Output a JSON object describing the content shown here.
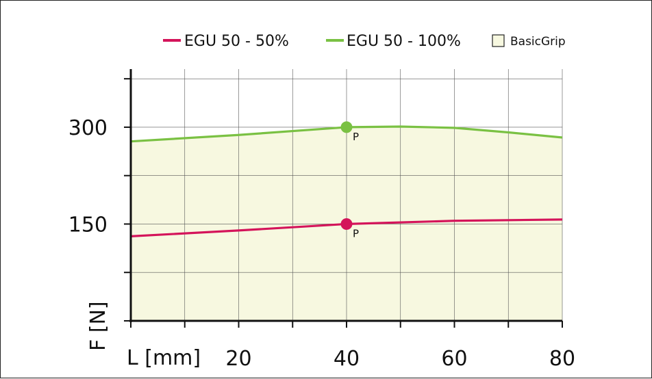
{
  "chart_data": {
    "type": "line",
    "xlabel": "L [mm]",
    "ylabel": "F [N]",
    "xlim": [
      0,
      80
    ],
    "ylim": [
      0,
      390
    ],
    "x_ticks": [
      "20",
      "40",
      "60",
      "80"
    ],
    "x_tick_values": [
      20,
      40,
      60,
      80
    ],
    "y_ticks": [
      "300",
      "150"
    ],
    "y_tick_values": [
      300,
      150
    ],
    "grid": true,
    "legend_position": "top",
    "series": [
      {
        "name": "EGU 50 - 50%",
        "color": "#d4145a",
        "x": [
          0,
          20,
          40,
          60,
          80
        ],
        "y": [
          131,
          140,
          150,
          155,
          157
        ],
        "marker_point": {
          "x": 40,
          "y": 150,
          "label": "P"
        }
      },
      {
        "name": "EGU 50 - 100%",
        "color": "#7ac143",
        "x": [
          0,
          20,
          40,
          50,
          60,
          70,
          80
        ],
        "y": [
          278,
          288,
          300,
          301,
          299,
          292,
          284
        ],
        "marker_point": {
          "x": 40,
          "y": 300,
          "label": "P"
        }
      }
    ],
    "area": {
      "name": "BasicGrip",
      "fill": "#f7f8e0"
    }
  }
}
